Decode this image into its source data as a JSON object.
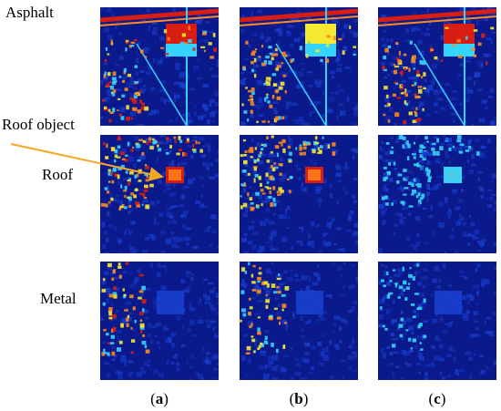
{
  "rows": [
    {
      "label": "Asphalt"
    },
    {
      "label": "Roof"
    },
    {
      "label": "Metal"
    }
  ],
  "annotation": {
    "label": "Roof object",
    "arrow_color": "#f5a623"
  },
  "columns": [
    {
      "open": "(",
      "letter": "a",
      "close": ")"
    },
    {
      "open": "(",
      "letter": "b",
      "close": ")"
    },
    {
      "open": "(",
      "letter": "c",
      "close": ")"
    }
  ],
  "colors": {
    "background_dark": "#0a1a8c",
    "background_mid": "#1a3fd0",
    "cyan": "#35d4ff",
    "yellow": "#f5e830",
    "orange": "#ff8a1a",
    "red": "#d81e12"
  }
}
